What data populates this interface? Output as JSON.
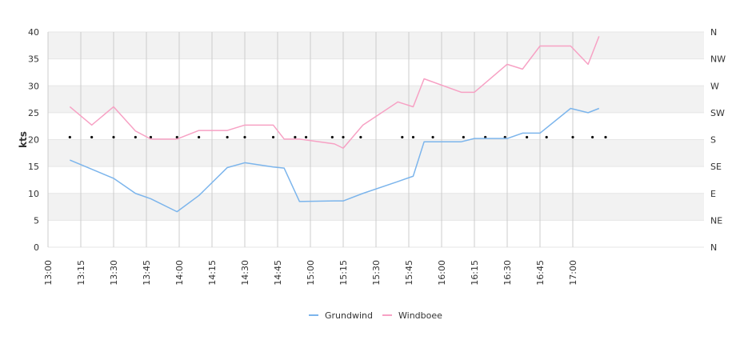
{
  "chart_data": {
    "type": "line",
    "ylabel": "kts",
    "ylim": [
      0,
      40
    ],
    "y_ticks": [
      "0",
      "5",
      "10",
      "15",
      "20",
      "25",
      "30",
      "35",
      "40"
    ],
    "x_range_minutes": [
      780,
      1080
    ],
    "x_ticks": [
      "13:00",
      "13:15",
      "13:30",
      "13:45",
      "14:00",
      "14:15",
      "14:30",
      "14:45",
      "15:00",
      "15:15",
      "15:30",
      "15:45",
      "16:00",
      "16:15",
      "16:30",
      "16:45",
      "17:00"
    ],
    "direction_ticks": [
      "N",
      "NE",
      "E",
      "SE",
      "S",
      "SW",
      "W",
      "NW",
      "N"
    ],
    "grid": true,
    "legend_position": "bottom-center",
    "series": [
      {
        "name": "Grundwind",
        "color": "#7cb5ec",
        "points": [
          [
            "13:10",
            16.2
          ],
          [
            "13:30",
            12.8
          ],
          [
            "13:40",
            10.0
          ],
          [
            "13:47",
            9.0
          ],
          [
            "13:59",
            6.6
          ],
          [
            "14:09",
            9.6
          ],
          [
            "14:22",
            14.8
          ],
          [
            "14:30",
            15.7
          ],
          [
            "14:43",
            14.9
          ],
          [
            "14:48",
            14.7
          ],
          [
            "14:55",
            8.5
          ],
          [
            "15:11",
            8.6
          ],
          [
            "15:15",
            8.6
          ],
          [
            "15:24",
            10.0
          ],
          [
            "15:40",
            12.2
          ],
          [
            "15:47",
            13.2
          ],
          [
            "15:52",
            19.6
          ],
          [
            "16:09",
            19.6
          ],
          [
            "16:15",
            20.2
          ],
          [
            "16:30",
            20.2
          ],
          [
            "16:37",
            21.2
          ],
          [
            "16:45",
            21.2
          ],
          [
            "16:59",
            25.8
          ],
          [
            "17:07",
            25.0
          ],
          [
            "17:12",
            25.8
          ]
        ]
      },
      {
        "name": "Windboee",
        "color": "#f7a1c4",
        "points": [
          [
            "13:10",
            26.1
          ],
          [
            "13:20",
            22.7
          ],
          [
            "13:30",
            26.1
          ],
          [
            "13:40",
            21.6
          ],
          [
            "13:47",
            20.1
          ],
          [
            "13:59",
            20.1
          ],
          [
            "14:09",
            21.7
          ],
          [
            "14:22",
            21.7
          ],
          [
            "14:30",
            22.7
          ],
          [
            "14:43",
            22.7
          ],
          [
            "14:48",
            20.1
          ],
          [
            "14:55",
            20.1
          ],
          [
            "15:11",
            19.2
          ],
          [
            "15:15",
            18.4
          ],
          [
            "15:24",
            22.7
          ],
          [
            "15:40",
            27.0
          ],
          [
            "15:47",
            26.1
          ],
          [
            "15:52",
            31.3
          ],
          [
            "16:09",
            28.8
          ],
          [
            "16:15",
            28.8
          ],
          [
            "16:30",
            34.0
          ],
          [
            "16:37",
            33.1
          ],
          [
            "16:45",
            37.4
          ],
          [
            "16:59",
            37.4
          ],
          [
            "17:07",
            34.0
          ],
          [
            "17:12",
            39.2
          ]
        ]
      }
    ],
    "direction_marker_times": [
      "13:10",
      "13:20",
      "13:30",
      "13:40",
      "13:47",
      "13:59",
      "14:09",
      "14:22",
      "14:30",
      "14:43",
      "14:53",
      "14:58",
      "15:10",
      "15:15",
      "15:23",
      "15:42",
      "15:47",
      "15:56",
      "16:10",
      "16:20",
      "16:29",
      "16:39",
      "16:48",
      "17:00",
      "17:09",
      "17:15"
    ]
  }
}
